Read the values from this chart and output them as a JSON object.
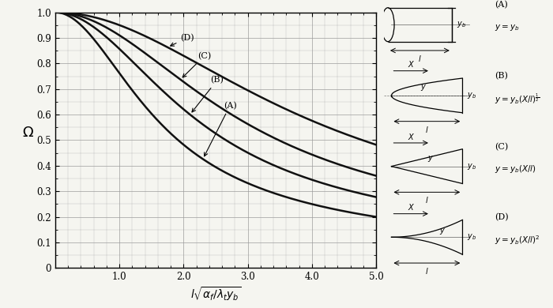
{
  "xlim": [
    0,
    5.0
  ],
  "ylim": [
    0,
    1.0
  ],
  "xticks": [
    1.0,
    2.0,
    3.0,
    4.0,
    5.0
  ],
  "yticks": [
    0.1,
    0.2,
    0.3,
    0.4,
    0.5,
    0.6,
    0.7,
    0.8,
    0.9,
    1.0
  ],
  "background_color": "#f5f5f0",
  "curve_color": "#111111",
  "grid_color": "#999999",
  "fig_width": 7.0,
  "fig_height": 3.9,
  "dpi": 100,
  "scale_A": 1.0,
  "scale_B": 0.72,
  "scale_C": 0.55,
  "scale_D": 0.4,
  "label_A": "(A)",
  "label_B": "(B)",
  "label_C": "(C)",
  "label_D": "(D)",
  "ylabel": "\\Omega",
  "xlabel": "l\\sqrt{\\alpha_f/\\lambda_t y_b}"
}
